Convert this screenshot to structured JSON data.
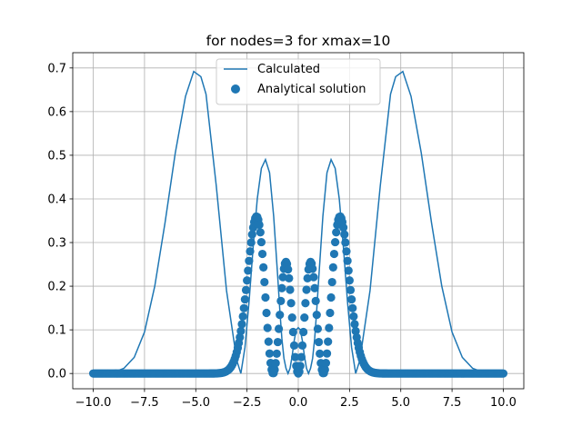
{
  "chart_data": {
    "type": "line",
    "title": "for nodes=3 for xmax=10",
    "xlabel": "",
    "ylabel": "",
    "xlim": [
      -11.0,
      11.0
    ],
    "ylim": [
      -0.035,
      0.735
    ],
    "xticks": [
      -10.0,
      -7.5,
      -5.0,
      -2.5,
      0.0,
      2.5,
      5.0,
      7.5,
      10.0
    ],
    "xtick_labels": [
      "−10.0",
      "−7.5",
      "−5.0",
      "−2.5",
      "0.0",
      "2.5",
      "5.0",
      "7.5",
      "10.0"
    ],
    "yticks": [
      0.0,
      0.1,
      0.2,
      0.3,
      0.4,
      0.5,
      0.6,
      0.7
    ],
    "ytick_labels": [
      "0.0",
      "0.1",
      "0.2",
      "0.3",
      "0.4",
      "0.5",
      "0.6",
      "0.7"
    ],
    "grid": true,
    "legend_position": "top-center",
    "series": [
      {
        "name": "Calculated",
        "kind": "line",
        "color": "#1f77b4",
        "x": [
          -10.0,
          -9.5,
          -9.0,
          -8.5,
          -8.0,
          -7.5,
          -7.0,
          -6.5,
          -6.0,
          -5.5,
          -5.1,
          -4.75,
          -4.5,
          -4.0,
          -3.5,
          -3.0,
          -2.8,
          -2.6,
          -2.4,
          -2.2,
          -2.0,
          -1.8,
          -1.6,
          -1.4,
          -1.2,
          -1.0,
          -0.9,
          -0.8,
          -0.7,
          -0.6,
          -0.5,
          -0.4,
          -0.3,
          -0.2,
          -0.1,
          0.0,
          0.1,
          0.2,
          0.3,
          0.4,
          0.5,
          0.6,
          0.7,
          0.8,
          0.9,
          1.0,
          1.2,
          1.4,
          1.6,
          1.8,
          2.0,
          2.2,
          2.4,
          2.6,
          2.8,
          3.0,
          3.5,
          4.0,
          4.5,
          4.75,
          5.1,
          5.5,
          6.0,
          6.5,
          7.0,
          7.5,
          8.0,
          8.5,
          9.0,
          9.5,
          10.0
        ],
        "y": [
          0.0,
          0.001,
          0.003,
          0.012,
          0.037,
          0.095,
          0.2,
          0.345,
          0.505,
          0.635,
          0.692,
          0.68,
          0.64,
          0.43,
          0.19,
          0.03,
          0.0,
          0.06,
          0.165,
          0.29,
          0.4,
          0.47,
          0.49,
          0.46,
          0.36,
          0.22,
          0.145,
          0.08,
          0.035,
          0.012,
          0.0,
          0.012,
          0.04,
          0.075,
          0.1,
          0.105,
          0.1,
          0.075,
          0.04,
          0.012,
          0.0,
          0.012,
          0.035,
          0.08,
          0.145,
          0.22,
          0.36,
          0.46,
          0.49,
          0.47,
          0.4,
          0.29,
          0.165,
          0.06,
          0.0,
          0.03,
          0.19,
          0.43,
          0.64,
          0.68,
          0.692,
          0.635,
          0.505,
          0.345,
          0.2,
          0.095,
          0.037,
          0.012,
          0.003,
          0.001,
          0.0
        ]
      },
      {
        "name": "Analytical solution",
        "kind": "scatter",
        "color": "#1f77b4",
        "x_range": [
          -10.0,
          10.0
        ],
        "peak_values": {
          "outer": 0.347,
          "inner": 0.245,
          "center": 0.0
        },
        "peak_positions": {
          "outer": 2.15,
          "inner": 0.6
        }
      }
    ]
  }
}
